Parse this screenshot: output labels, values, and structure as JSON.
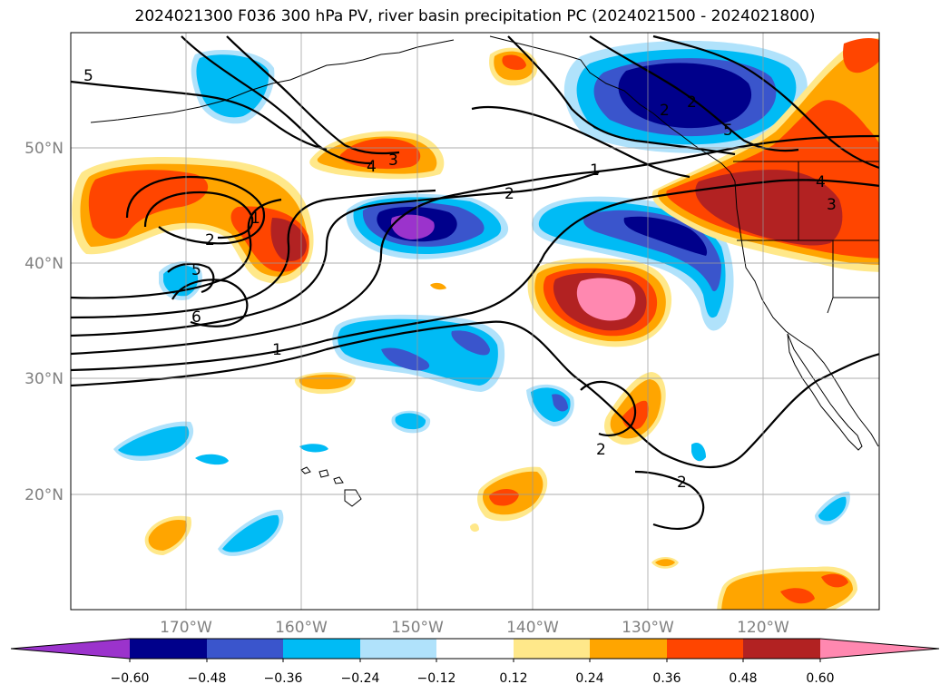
{
  "title": "2024021300 F036 300 hPa PV, river basin precipitation PC (2024021500 - 2024021800)",
  "latitude_labels": [
    "50°N",
    "40°N",
    "30°N",
    "20°N"
  ],
  "longitude_labels": [
    "170°W",
    "160°W",
    "150°W",
    "140°W",
    "130°W",
    "120°W"
  ],
  "pv_contour_labels": [
    "5",
    "3",
    "4",
    "1",
    "2",
    "5",
    "6",
    "1",
    "2",
    "1",
    "2",
    "2",
    "2",
    "5",
    "4",
    "3",
    "2"
  ],
  "colorbar": {
    "tick_labels": [
      "−0.60",
      "−0.48",
      "−0.36",
      "−0.24",
      "−0.12",
      "0.12",
      "0.24",
      "0.36",
      "0.48",
      "0.60"
    ],
    "colors": [
      "#9b33cc",
      "#00008b",
      "#3a55cc",
      "#00bbf5",
      "#b0e2fb",
      "#ffffff",
      "#ffe88a",
      "#ffa500",
      "#ff4500",
      "#b22222",
      "#ff88b0"
    ]
  }
}
